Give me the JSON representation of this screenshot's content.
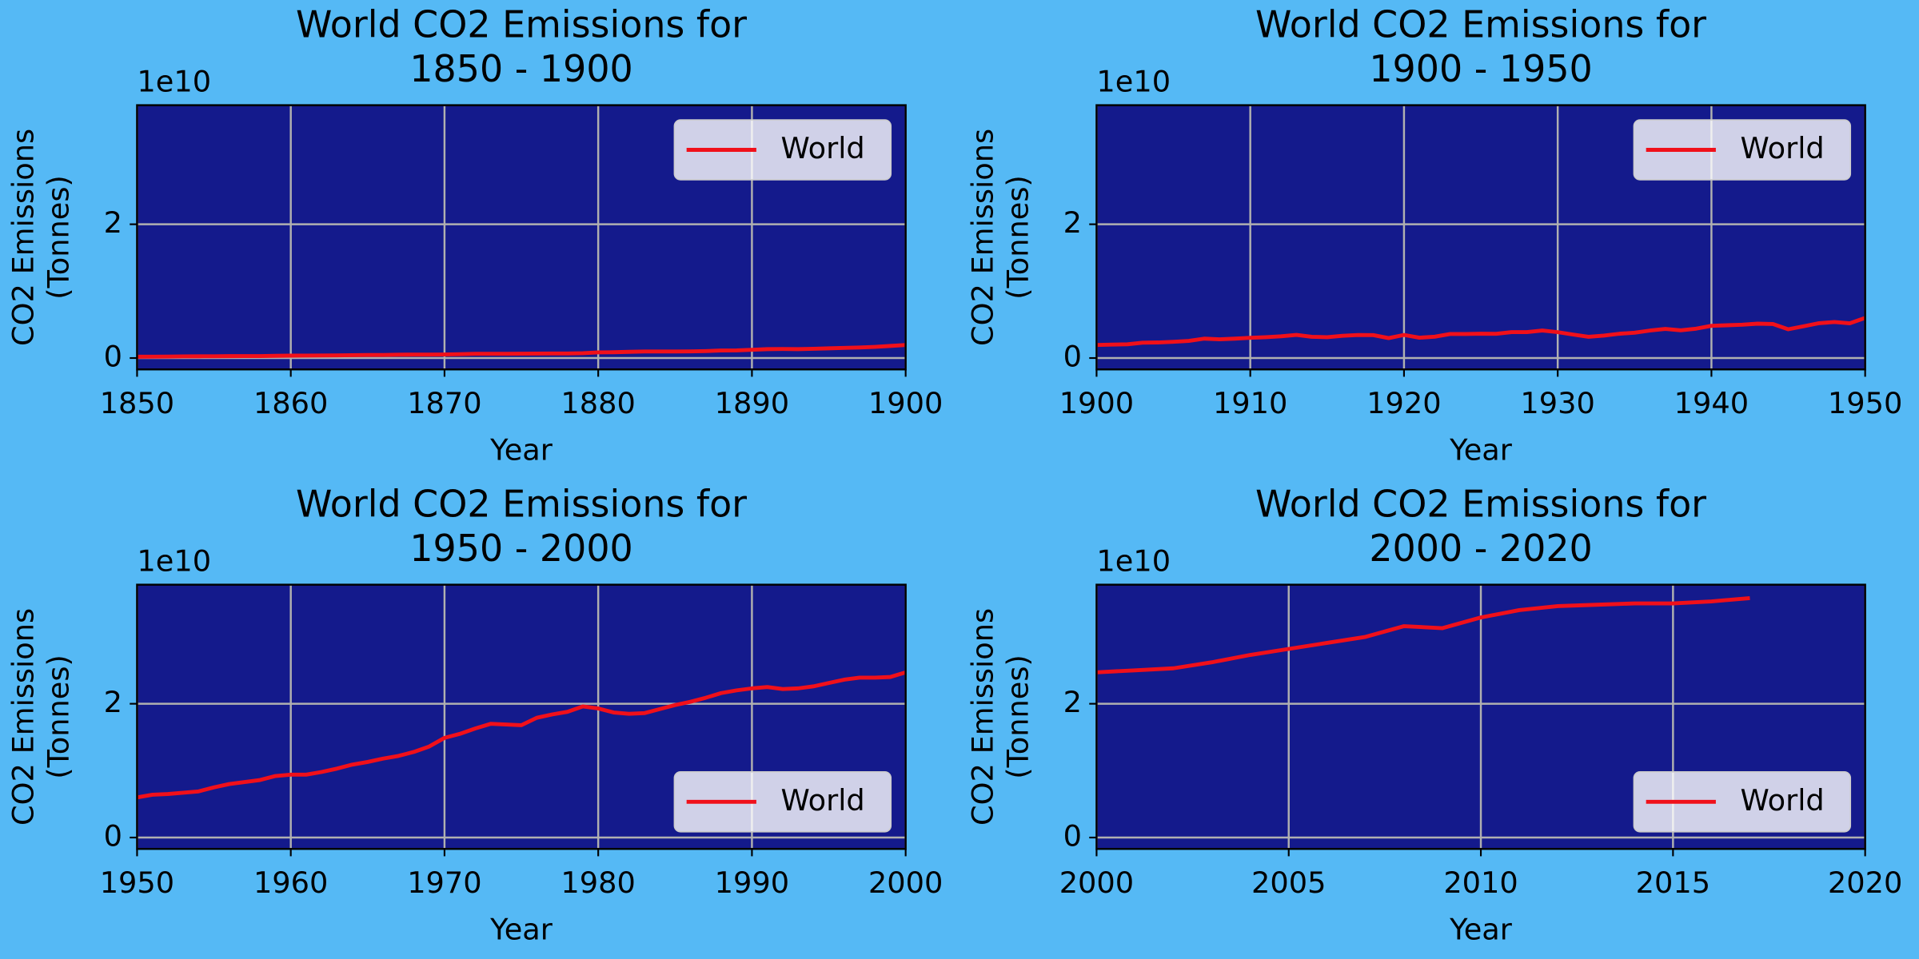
{
  "chart_data": [
    {
      "type": "line",
      "title": "World CO2 Emissions for\n1850 - 1900",
      "x_label": "Year",
      "y_label": "CO2 Emissions\n(Tonnes)",
      "y_offset_label": "1e10",
      "xlim": [
        1850,
        1900
      ],
      "xticks": [
        1850,
        1860,
        1870,
        1880,
        1890,
        1900
      ],
      "ylim": [
        -1700000000.0,
        37800000000.0
      ],
      "yticks": [
        0,
        {
          "value": 20000000000,
          "label": "2"
        }
      ],
      "grid": true,
      "legend": "upper right",
      "facecolor": "#141a8c",
      "x": [
        1850,
        1851,
        1852,
        1853,
        1854,
        1855,
        1856,
        1857,
        1858,
        1859,
        1860,
        1861,
        1862,
        1863,
        1864,
        1865,
        1866,
        1867,
        1868,
        1869,
        1870,
        1871,
        1872,
        1873,
        1874,
        1875,
        1876,
        1877,
        1878,
        1879,
        1880,
        1881,
        1882,
        1883,
        1884,
        1885,
        1886,
        1887,
        1888,
        1889,
        1890,
        1891,
        1892,
        1893,
        1894,
        1895,
        1896,
        1897,
        1898,
        1899,
        1900
      ],
      "series": [
        {
          "name": "World",
          "color": "#f0101a",
          "values": [
            197000000.0,
            206000000.0,
            217000000.0,
            251000000.0,
            256000000.0,
            262000000.0,
            286000000.0,
            288000000.0,
            299000000.0,
            329000000.0,
            361000000.0,
            372000000.0,
            381000000.0,
            403000000.0,
            430000000.0,
            460000000.0,
            464000000.0,
            508000000.0,
            513000000.0,
            522000000.0,
            532000000.0,
            578000000.0,
            631000000.0,
            641000000.0,
            634000000.0,
            652000000.0,
            668000000.0,
            676000000.0,
            680000000.0,
            732000000.0,
            850000000.0,
            868000000.0,
            927000000.0,
            976000000.0,
            976000000.0,
            984000000.0,
            994000000.0,
            1041000000.0,
            1124000000.0,
            1146000000.0,
            1230000000.0,
            1330000000.0,
            1350000000.0,
            1330000000.0,
            1380000000.0,
            1450000000.0,
            1520000000.0,
            1580000000.0,
            1670000000.0,
            1810000000.0,
            1950000000.0
          ]
        }
      ]
    },
    {
      "type": "line",
      "title": "World CO2 Emissions for\n1900 - 1950",
      "x_label": "Year",
      "y_label": "CO2 Emissions\n(Tonnes)",
      "y_offset_label": "1e10",
      "xlim": [
        1900,
        1950
      ],
      "xticks": [
        1900,
        1910,
        1920,
        1930,
        1940,
        1950
      ],
      "ylim": [
        -1700000000.0,
        37800000000.0
      ],
      "yticks": [
        0,
        {
          "value": 20000000000,
          "label": "2"
        }
      ],
      "grid": true,
      "legend": "upper right",
      "facecolor": "#141a8c",
      "x": [
        1900,
        1901,
        1902,
        1903,
        1904,
        1905,
        1906,
        1907,
        1908,
        1909,
        1910,
        1911,
        1912,
        1913,
        1914,
        1915,
        1916,
        1917,
        1918,
        1919,
        1920,
        1921,
        1922,
        1923,
        1924,
        1925,
        1926,
        1927,
        1928,
        1929,
        1930,
        1931,
        1932,
        1933,
        1934,
        1935,
        1936,
        1937,
        1938,
        1939,
        1940,
        1941,
        1942,
        1943,
        1944,
        1945,
        1946,
        1947,
        1948,
        1949,
        1950
      ],
      "series": [
        {
          "name": "World",
          "color": "#f0101a",
          "values": [
            1950000000.0,
            2010000000.0,
            2060000000.0,
            2290000000.0,
            2330000000.0,
            2430000000.0,
            2560000000.0,
            2900000000.0,
            2800000000.0,
            2900000000.0,
            3030000000.0,
            3120000000.0,
            3250000000.0,
            3460000000.0,
            3170000000.0,
            3120000000.0,
            3330000000.0,
            3450000000.0,
            3430000000.0,
            2980000000.0,
            3450000000.0,
            3040000000.0,
            3190000000.0,
            3590000000.0,
            3600000000.0,
            3640000000.0,
            3620000000.0,
            3880000000.0,
            3880000000.0,
            4120000000.0,
            3870000000.0,
            3510000000.0,
            3170000000.0,
            3350000000.0,
            3630000000.0,
            3790000000.0,
            4110000000.0,
            4360000000.0,
            4150000000.0,
            4390000000.0,
            4820000000.0,
            4900000000.0,
            4980000000.0,
            5140000000.0,
            5090000000.0,
            4300000000.0,
            4750000000.0,
            5210000000.0,
            5380000000.0,
            5190000000.0,
            6000000000.0
          ]
        }
      ]
    },
    {
      "type": "line",
      "title": "World CO2 Emissions for\n1950 - 2000",
      "x_label": "Year",
      "y_label": "CO2 Emissions\n(Tonnes)",
      "y_offset_label": "1e10",
      "xlim": [
        1950,
        2000
      ],
      "xticks": [
        1950,
        1960,
        1970,
        1980,
        1990,
        2000
      ],
      "ylim": [
        -1700000000.0,
        37800000000.0
      ],
      "yticks": [
        0,
        {
          "value": 20000000000,
          "label": "2"
        }
      ],
      "grid": true,
      "legend": "lower right",
      "facecolor": "#141a8c",
      "x": [
        1950,
        1951,
        1952,
        1953,
        1954,
        1955,
        1956,
        1957,
        1958,
        1959,
        1960,
        1961,
        1962,
        1963,
        1964,
        1965,
        1966,
        1967,
        1968,
        1969,
        1970,
        1971,
        1972,
        1973,
        1974,
        1975,
        1976,
        1977,
        1978,
        1979,
        1980,
        1981,
        1982,
        1983,
        1984,
        1985,
        1986,
        1987,
        1988,
        1989,
        1990,
        1991,
        1992,
        1993,
        1994,
        1995,
        1996,
        1997,
        1998,
        1999,
        2000
      ],
      "series": [
        {
          "name": "World",
          "color": "#f0101a",
          "values": [
            6000000000.0,
            6400000000.0,
            6500000000.0,
            6700000000.0,
            6900000000.0,
            7500000000.0,
            8000000000.0,
            8300000000.0,
            8600000000.0,
            9200000000.0,
            9400000000.0,
            9400000000.0,
            9800000000.0,
            10300000000.0,
            10900000000.0,
            11300000000.0,
            11800000000.0,
            12200000000.0,
            12800000000.0,
            13600000000.0,
            14900000000.0,
            15500000000.0,
            16300000000.0,
            17000000000.0,
            16900000000.0,
            16800000000.0,
            17900000000.0,
            18400000000.0,
            18800000000.0,
            19600000000.0,
            19300000000.0,
            18700000000.0,
            18500000000.0,
            18600000000.0,
            19200000000.0,
            19800000000.0,
            20300000000.0,
            20900000000.0,
            21600000000.0,
            22000000000.0,
            22300000000.0,
            22500000000.0,
            22200000000.0,
            22300000000.0,
            22600000000.0,
            23100000000.0,
            23600000000.0,
            23900000000.0,
            23900000000.0,
            24000000000.0,
            24700000000.0
          ]
        }
      ]
    },
    {
      "type": "line",
      "title": "World CO2 Emissions for\n2000 - 2020",
      "x_label": "Year",
      "y_label": "CO2 Emissions\n(Tonnes)",
      "y_offset_label": "1e10",
      "xlim": [
        2000,
        2020
      ],
      "xticks": [
        2000,
        2005,
        2010,
        2015,
        2020
      ],
      "ylim": [
        -1700000000.0,
        37800000000.0
      ],
      "yticks": [
        0,
        {
          "value": 20000000000,
          "label": "2"
        }
      ],
      "grid": true,
      "legend": "lower right",
      "facecolor": "#141a8c",
      "x": [
        2000,
        2001,
        2002,
        2003,
        2004,
        2005,
        2006,
        2007,
        2008,
        2009,
        2010,
        2011,
        2012,
        2013,
        2014,
        2015,
        2016,
        2017
      ],
      "series": [
        {
          "name": "World",
          "color": "#f0101a",
          "values": [
            24700000000.0,
            25000000000.0,
            25300000000.0,
            26200000000.0,
            27300000000.0,
            28200000000.0,
            29100000000.0,
            30000000000.0,
            31600000000.0,
            31300000000.0,
            32900000000.0,
            34000000000.0,
            34600000000.0,
            34800000000.0,
            35000000000.0,
            35000000000.0,
            35300000000.0,
            35800000000.0
          ]
        }
      ]
    }
  ]
}
